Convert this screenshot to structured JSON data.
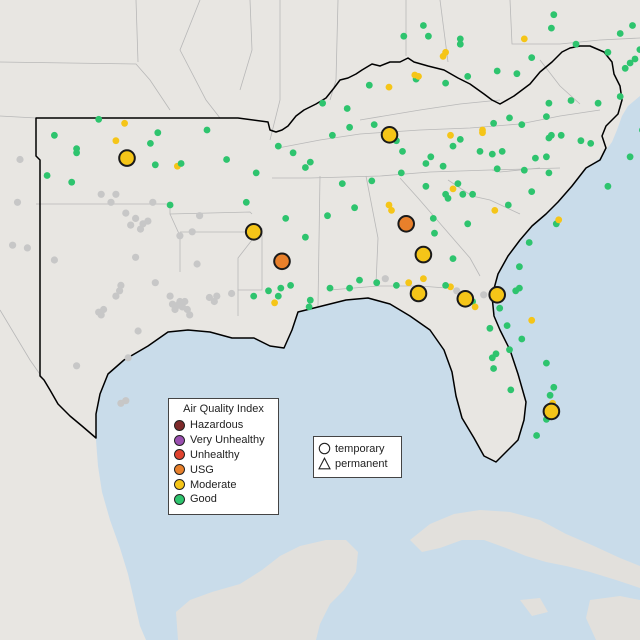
{
  "colors": {
    "water": "#c9dcea",
    "land": "#e8e6e2",
    "land_far": "#e2e0dc",
    "region_outline": "#000000",
    "state_lines": "#b8b8b8"
  },
  "legend": {
    "title": "Air Quality Index",
    "items": [
      {
        "label": "Hazardous",
        "color": "#7e2a2a"
      },
      {
        "label": "Very Unhealthy",
        "color": "#9a4fb0"
      },
      {
        "label": "Unhealthy",
        "color": "#e0432f"
      },
      {
        "label": "USG",
        "color": "#e8802b"
      },
      {
        "label": "Moderate",
        "color": "#f5c518"
      },
      {
        "label": "Good",
        "color": "#2ec46e"
      }
    ]
  },
  "shape_legend": {
    "items": [
      {
        "label": "temporary",
        "shape": "circle"
      },
      {
        "label": "permanent",
        "shape": "triangle"
      }
    ]
  },
  "monitors": {
    "large": [
      {
        "lon": -97.45,
        "lat": 35.25,
        "category": "Moderate"
      },
      {
        "lon": -86.78,
        "lat": 36.12,
        "category": "Moderate"
      },
      {
        "lon": -92.3,
        "lat": 32.5,
        "category": "Moderate"
      },
      {
        "lon": -91.15,
        "lat": 31.4,
        "category": "USG"
      },
      {
        "lon": -86.1,
        "lat": 32.8,
        "category": "USG"
      },
      {
        "lon": -85.4,
        "lat": 31.65,
        "category": "Moderate"
      },
      {
        "lon": -85.6,
        "lat": 30.2,
        "category": "Moderate"
      },
      {
        "lon": -83.7,
        "lat": 30.0,
        "category": "Moderate"
      },
      {
        "lon": -82.4,
        "lat": 30.15,
        "category": "Moderate"
      },
      {
        "lon": -80.2,
        "lat": 25.8,
        "category": "Moderate"
      }
    ],
    "small": [
      {
        "lon": -100.4,
        "lat": 36.1,
        "category": "Good"
      },
      {
        "lon": -98.6,
        "lat": 36.7,
        "category": "Good"
      },
      {
        "lon": -99.5,
        "lat": 35.6,
        "category": "Good"
      },
      {
        "lon": -99.5,
        "lat": 35.45,
        "category": "Good"
      },
      {
        "lon": -100.7,
        "lat": 34.6,
        "category": "Good"
      },
      {
        "lon": -99.7,
        "lat": 34.35,
        "category": "Good"
      },
      {
        "lon": -97.9,
        "lat": 35.9,
        "category": "Moderate"
      },
      {
        "lon": -97.55,
        "lat": 36.55,
        "category": "Moderate"
      },
      {
        "lon": -96.2,
        "lat": 36.2,
        "category": "Good"
      },
      {
        "lon": -96.5,
        "lat": 35.8,
        "category": "Good"
      },
      {
        "lon": -96.3,
        "lat": 35.0,
        "category": "Good"
      },
      {
        "lon": -95.4,
        "lat": 34.95,
        "category": "Moderate"
      },
      {
        "lon": -95.25,
        "lat": 35.05,
        "category": "Good"
      },
      {
        "lon": -95.7,
        "lat": 33.5,
        "category": "Good"
      },
      {
        "lon": -94.2,
        "lat": 36.3,
        "category": "Good"
      },
      {
        "lon": -93.4,
        "lat": 35.2,
        "category": "Good"
      },
      {
        "lon": -92.2,
        "lat": 34.7,
        "category": "Good"
      },
      {
        "lon": -91.3,
        "lat": 35.7,
        "category": "Good"
      },
      {
        "lon": -90.7,
        "lat": 35.45,
        "category": "Good"
      },
      {
        "lon": -92.6,
        "lat": 33.6,
        "category": "Good"
      },
      {
        "lon": -91.0,
        "lat": 33.0,
        "category": "Good"
      },
      {
        "lon": -90.0,
        "lat": 35.1,
        "category": "Good"
      },
      {
        "lon": -90.2,
        "lat": 34.9,
        "category": "Good"
      },
      {
        "lon": -89.3,
        "lat": 33.1,
        "category": "Good"
      },
      {
        "lon": -90.2,
        "lat": 32.3,
        "category": "Good"
      },
      {
        "lon": -88.7,
        "lat": 34.3,
        "category": "Good"
      },
      {
        "lon": -88.2,
        "lat": 33.4,
        "category": "Good"
      },
      {
        "lon": -90.8,
        "lat": 30.5,
        "category": "Good"
      },
      {
        "lon": -91.7,
        "lat": 30.3,
        "category": "Good"
      },
      {
        "lon": -91.2,
        "lat": 30.4,
        "category": "Good"
      },
      {
        "lon": -91.3,
        "lat": 30.1,
        "category": "Good"
      },
      {
        "lon": -91.45,
        "lat": 29.85,
        "category": "Moderate"
      },
      {
        "lon": -92.3,
        "lat": 30.1,
        "category": "Good"
      },
      {
        "lon": -90.0,
        "lat": 29.95,
        "category": "Good"
      },
      {
        "lon": -90.05,
        "lat": 29.7,
        "category": "Good"
      },
      {
        "lon": -89.2,
        "lat": 30.4,
        "category": "Good"
      },
      {
        "lon": -88.4,
        "lat": 30.4,
        "category": "Good"
      },
      {
        "lon": -88.0,
        "lat": 30.7,
        "category": "Good"
      },
      {
        "lon": -87.3,
        "lat": 30.6,
        "category": "Good"
      },
      {
        "lon": -86.5,
        "lat": 30.5,
        "category": "Good"
      },
      {
        "lon": -86.0,
        "lat": 30.6,
        "category": "Moderate"
      },
      {
        "lon": -85.4,
        "lat": 30.75,
        "category": "Moderate"
      },
      {
        "lon": -86.8,
        "lat": 33.5,
        "category": "Moderate"
      },
      {
        "lon": -86.7,
        "lat": 33.3,
        "category": "Moderate"
      },
      {
        "lon": -87.5,
        "lat": 34.4,
        "category": "Good"
      },
      {
        "lon": -86.3,
        "lat": 34.7,
        "category": "Good"
      },
      {
        "lon": -85.3,
        "lat": 34.2,
        "category": "Good"
      },
      {
        "lon": -85.0,
        "lat": 33.0,
        "category": "Good"
      },
      {
        "lon": -84.4,
        "lat": 33.75,
        "category": "Good"
      },
      {
        "lon": -84.5,
        "lat": 33.9,
        "category": "Good"
      },
      {
        "lon": -84.2,
        "lat": 34.1,
        "category": "Moderate"
      },
      {
        "lon": -83.4,
        "lat": 33.9,
        "category": "Good"
      },
      {
        "lon": -82.5,
        "lat": 33.3,
        "category": "Moderate"
      },
      {
        "lon": -81.95,
        "lat": 33.5,
        "category": "Good"
      },
      {
        "lon": -81.0,
        "lat": 34.0,
        "category": "Good"
      },
      {
        "lon": -80.3,
        "lat": 34.7,
        "category": "Good"
      },
      {
        "lon": -80.85,
        "lat": 35.25,
        "category": "Good"
      },
      {
        "lon": -79.0,
        "lat": 35.9,
        "category": "Good"
      },
      {
        "lon": -78.6,
        "lat": 35.8,
        "category": "Good"
      },
      {
        "lon": -77.0,
        "lat": 35.3,
        "category": "Good"
      },
      {
        "lon": -76.5,
        "lat": 36.3,
        "category": "Good"
      },
      {
        "lon": -77.9,
        "lat": 34.2,
        "category": "Good"
      },
      {
        "lon": -79.8,
        "lat": 36.1,
        "category": "Good"
      },
      {
        "lon": -80.2,
        "lat": 36.1,
        "category": "Good"
      },
      {
        "lon": -80.3,
        "lat": 36.0,
        "category": "Good"
      },
      {
        "lon": -80.4,
        "lat": 35.3,
        "category": "Good"
      },
      {
        "lon": -81.3,
        "lat": 34.8,
        "category": "Good"
      },
      {
        "lon": -82.4,
        "lat": 34.85,
        "category": "Good"
      },
      {
        "lon": -82.6,
        "lat": 35.4,
        "category": "Good"
      },
      {
        "lon": -82.2,
        "lat": 35.5,
        "category": "Good"
      },
      {
        "lon": -83.1,
        "lat": 35.5,
        "category": "Good"
      },
      {
        "lon": -83.9,
        "lat": 35.95,
        "category": "Good"
      },
      {
        "lon": -84.2,
        "lat": 35.7,
        "category": "Good"
      },
      {
        "lon": -84.3,
        "lat": 36.1,
        "category": "Moderate"
      },
      {
        "lon": -83.0,
        "lat": 36.2,
        "category": "Moderate"
      },
      {
        "lon": -83.0,
        "lat": 36.3,
        "category": "Moderate"
      },
      {
        "lon": -82.55,
        "lat": 36.55,
        "category": "Good"
      },
      {
        "lon": -81.9,
        "lat": 36.75,
        "category": "Good"
      },
      {
        "lon": -81.4,
        "lat": 36.5,
        "category": "Good"
      },
      {
        "lon": -80.3,
        "lat": 37.3,
        "category": "Good"
      },
      {
        "lon": -79.4,
        "lat": 37.4,
        "category": "Good"
      },
      {
        "lon": -78.3,
        "lat": 37.3,
        "category": "Good"
      },
      {
        "lon": -77.4,
        "lat": 37.55,
        "category": "Good"
      },
      {
        "lon": -77.0,
        "lat": 38.8,
        "category": "Good"
      },
      {
        "lon": -76.3,
        "lat": 37.0,
        "category": "Good"
      },
      {
        "lon": -76.0,
        "lat": 37.6,
        "category": "Good"
      },
      {
        "lon": -77.9,
        "lat": 39.2,
        "category": "Good"
      },
      {
        "lon": -77.4,
        "lat": 39.9,
        "category": "Good"
      },
      {
        "lon": -76.9,
        "lat": 40.2,
        "category": "Good"
      },
      {
        "lon": -76.0,
        "lat": 40.0,
        "category": "Good"
      },
      {
        "lon": -75.5,
        "lat": 39.5,
        "category": "Good"
      },
      {
        "lon": -75.7,
        "lat": 39.2,
        "category": "Good"
      },
      {
        "lon": -74.9,
        "lat": 40.0,
        "category": "Good"
      },
      {
        "lon": -79.2,
        "lat": 39.5,
        "category": "Good"
      },
      {
        "lon": -80.1,
        "lat": 40.6,
        "category": "Good"
      },
      {
        "lon": -80.2,
        "lat": 40.1,
        "category": "Good"
      },
      {
        "lon": -81.0,
        "lat": 39.0,
        "category": "Good"
      },
      {
        "lon": -81.6,
        "lat": 38.4,
        "category": "Good"
      },
      {
        "lon": -82.4,
        "lat": 38.5,
        "category": "Good"
      },
      {
        "lon": -84.5,
        "lat": 38.05,
        "category": "Good"
      },
      {
        "lon": -83.6,
        "lat": 38.3,
        "category": "Good"
      },
      {
        "lon": -85.7,
        "lat": 38.2,
        "category": "Good"
      },
      {
        "lon": -85.6,
        "lat": 38.3,
        "category": "Moderate"
      },
      {
        "lon": -85.75,
        "lat": 38.35,
        "category": "Moderate"
      },
      {
        "lon": -84.6,
        "lat": 39.05,
        "category": "Moderate"
      },
      {
        "lon": -84.5,
        "lat": 39.2,
        "category": "Moderate"
      },
      {
        "lon": -83.9,
        "lat": 39.7,
        "category": "Good"
      },
      {
        "lon": -81.3,
        "lat": 39.7,
        "category": "Moderate"
      },
      {
        "lon": -86.8,
        "lat": 37.9,
        "category": "Moderate"
      },
      {
        "lon": -87.6,
        "lat": 37.97,
        "category": "Good"
      },
      {
        "lon": -88.5,
        "lat": 37.1,
        "category": "Good"
      },
      {
        "lon": -89.5,
        "lat": 37.3,
        "category": "Good"
      },
      {
        "lon": -89.1,
        "lat": 36.1,
        "category": "Good"
      },
      {
        "lon": -88.4,
        "lat": 36.4,
        "category": "Good"
      },
      {
        "lon": -87.4,
        "lat": 36.5,
        "category": "Good"
      },
      {
        "lon": -86.5,
        "lat": 35.9,
        "category": "Good"
      },
      {
        "lon": -86.25,
        "lat": 35.5,
        "category": "Good"
      },
      {
        "lon": -85.3,
        "lat": 35.05,
        "category": "Good"
      },
      {
        "lon": -85.1,
        "lat": 35.3,
        "category": "Good"
      },
      {
        "lon": -84.6,
        "lat": 34.95,
        "category": "Good"
      },
      {
        "lon": -83.8,
        "lat": 33.9,
        "category": "Good"
      },
      {
        "lon": -84.0,
        "lat": 34.3,
        "category": "Good"
      },
      {
        "lon": -83.6,
        "lat": 32.8,
        "category": "Good"
      },
      {
        "lon": -84.95,
        "lat": 32.45,
        "category": "Good"
      },
      {
        "lon": -84.2,
        "lat": 31.5,
        "category": "Good"
      },
      {
        "lon": -81.1,
        "lat": 32.1,
        "category": "Good"
      },
      {
        "lon": -81.5,
        "lat": 31.2,
        "category": "Good"
      },
      {
        "lon": -80.0,
        "lat": 32.8,
        "category": "Good"
      },
      {
        "lon": -79.9,
        "lat": 32.95,
        "category": "Moderate"
      },
      {
        "lon": -81.5,
        "lat": 30.4,
        "category": "Good"
      },
      {
        "lon": -81.65,
        "lat": 30.3,
        "category": "Good"
      },
      {
        "lon": -82.3,
        "lat": 29.65,
        "category": "Good"
      },
      {
        "lon": -81.0,
        "lat": 29.2,
        "category": "Moderate"
      },
      {
        "lon": -81.4,
        "lat": 28.5,
        "category": "Good"
      },
      {
        "lon": -81.9,
        "lat": 28.1,
        "category": "Good"
      },
      {
        "lon": -82.45,
        "lat": 27.95,
        "category": "Good"
      },
      {
        "lon": -82.6,
        "lat": 27.8,
        "category": "Good"
      },
      {
        "lon": -82.55,
        "lat": 27.4,
        "category": "Good"
      },
      {
        "lon": -81.85,
        "lat": 26.6,
        "category": "Good"
      },
      {
        "lon": -80.4,
        "lat": 27.6,
        "category": "Good"
      },
      {
        "lon": -80.1,
        "lat": 26.7,
        "category": "Good"
      },
      {
        "lon": -80.25,
        "lat": 26.4,
        "category": "Good"
      },
      {
        "lon": -80.15,
        "lat": 26.1,
        "category": "Moderate"
      },
      {
        "lon": -80.4,
        "lat": 25.5,
        "category": "Good"
      },
      {
        "lon": -80.8,
        "lat": 24.9,
        "category": "Good"
      },
      {
        "lon": -83.4,
        "lat": 29.9,
        "category": "Good"
      },
      {
        "lon": -84.3,
        "lat": 30.45,
        "category": "Moderate"
      },
      {
        "lon": -84.5,
        "lat": 30.5,
        "category": "Good"
      },
      {
        "lon": -83.3,
        "lat": 29.7,
        "category": "Moderate"
      },
      {
        "lon": -82.7,
        "lat": 28.9,
        "category": "Good"
      },
      {
        "lon": -82.0,
        "lat": 29.0,
        "category": "Good"
      },
      {
        "lon": -83.9,
        "lat": 39.5,
        "category": "Good"
      },
      {
        "lon": -85.2,
        "lat": 39.8,
        "category": "Good"
      },
      {
        "lon": -86.2,
        "lat": 39.8,
        "category": "Good"
      },
      {
        "lon": -85.4,
        "lat": 40.2,
        "category": "Good"
      },
      {
        "lon": -76.6,
        "lat": 39.3,
        "category": "Good"
      },
      {
        "lon": -76.8,
        "lat": 38.95,
        "category": "Good"
      },
      {
        "lon": -77.2,
        "lat": 38.6,
        "category": "Good"
      },
      {
        "lon": -76.4,
        "lat": 38.3,
        "category": "Good"
      },
      {
        "lon": -75.6,
        "lat": 38.6,
        "category": "Good"
      },
      {
        "lon": -76.1,
        "lat": 36.85,
        "category": "Good"
      },
      {
        "lon": -80.4,
        "lat": 36.8,
        "category": "Good"
      }
    ],
    "outside_region": [
      {
        "lon": -97.1,
        "lat": 33.0
      },
      {
        "lon": -96.8,
        "lat": 32.8
      },
      {
        "lon": -97.3,
        "lat": 32.75
      },
      {
        "lon": -96.6,
        "lat": 32.9
      },
      {
        "lon": -96.9,
        "lat": 32.6
      },
      {
        "lon": -97.5,
        "lat": 33.2
      },
      {
        "lon": -96.4,
        "lat": 33.6
      },
      {
        "lon": -97.9,
        "lat": 33.9
      },
      {
        "lon": -98.5,
        "lat": 33.9
      },
      {
        "lon": -97.75,
        "lat": 30.3
      },
      {
        "lon": -97.7,
        "lat": 30.5
      },
      {
        "lon": -97.9,
        "lat": 30.1
      },
      {
        "lon": -98.5,
        "lat": 29.4
      },
      {
        "lon": -98.4,
        "lat": 29.6
      },
      {
        "lon": -98.6,
        "lat": 29.5
      },
      {
        "lon": -95.4,
        "lat": 29.75
      },
      {
        "lon": -95.2,
        "lat": 29.7
      },
      {
        "lon": -95.3,
        "lat": 29.9
      },
      {
        "lon": -95.6,
        "lat": 29.8
      },
      {
        "lon": -95.0,
        "lat": 29.6
      },
      {
        "lon": -95.5,
        "lat": 29.6
      },
      {
        "lon": -95.1,
        "lat": 29.9
      },
      {
        "lon": -94.9,
        "lat": 29.4
      },
      {
        "lon": -95.7,
        "lat": 30.1
      },
      {
        "lon": -94.1,
        "lat": 30.05
      },
      {
        "lon": -93.9,
        "lat": 29.9
      },
      {
        "lon": -93.8,
        "lat": 30.1
      },
      {
        "lon": -93.2,
        "lat": 30.2
      },
      {
        "lon": -94.8,
        "lat": 32.5
      },
      {
        "lon": -95.3,
        "lat": 32.35
      },
      {
        "lon": -94.6,
        "lat": 31.3
      },
      {
        "lon": -96.3,
        "lat": 30.6
      },
      {
        "lon": -97.1,
        "lat": 31.55
      },
      {
        "lon": -97.4,
        "lat": 27.8
      },
      {
        "lon": -97.5,
        "lat": 26.2
      },
      {
        "lon": -97.7,
        "lat": 26.1
      },
      {
        "lon": -99.5,
        "lat": 27.5
      },
      {
        "lon": -101.9,
        "lat": 33.6
      },
      {
        "lon": -101.8,
        "lat": 35.2
      },
      {
        "lon": -102.1,
        "lat": 32.0
      },
      {
        "lon": -101.5,
        "lat": 31.9
      },
      {
        "lon": -100.4,
        "lat": 31.45
      },
      {
        "lon": -97.0,
        "lat": 28.8
      },
      {
        "lon": -106.4,
        "lat": 31.8
      },
      {
        "lon": -86.95,
        "lat": 30.75
      },
      {
        "lon": -84.05,
        "lat": 30.3
      },
      {
        "lon": -82.95,
        "lat": 30.15
      },
      {
        "lon": -94.5,
        "lat": 33.1
      },
      {
        "lon": -98.1,
        "lat": 33.6
      }
    ]
  }
}
